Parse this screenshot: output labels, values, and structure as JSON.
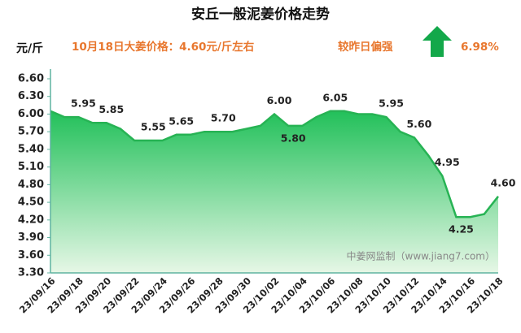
{
  "chart_data": {
    "type": "area",
    "title": "安丘一般泥姜价格走势",
    "y_unit": "元/斤",
    "subtitle": "10月18日大姜价格：4.60元/斤左右",
    "change_text": "较昨日偏强",
    "change": "6.98%",
    "watermark": "中姜网监制（www.jiang7.com）",
    "color": "#27b354",
    "categories": [
      "23/09/16",
      null,
      "23/09/18",
      null,
      "23/09/20",
      null,
      "23/09/22",
      null,
      "23/09/24",
      null,
      "23/09/26",
      null,
      "23/09/28",
      null,
      "23/09/30",
      null,
      "23/10/02",
      null,
      "23/10/04",
      null,
      "23/10/06",
      null,
      "23/10/08",
      null,
      "23/10/10",
      null,
      "23/10/12",
      null,
      "23/10/14",
      null,
      "23/10/16",
      null,
      "23/10/18"
    ],
    "values": [
      6.05,
      5.95,
      5.95,
      5.85,
      5.85,
      5.75,
      5.55,
      5.55,
      5.55,
      5.65,
      5.65,
      5.7,
      5.7,
      5.7,
      5.75,
      5.8,
      6.0,
      5.8,
      5.8,
      5.95,
      6.05,
      6.05,
      6.0,
      6.0,
      5.95,
      5.7,
      5.6,
      5.3,
      4.95,
      4.25,
      4.25,
      4.3,
      4.6
    ],
    "value_labels": [
      null,
      null,
      "5.95",
      null,
      "5.85",
      null,
      null,
      "5.55",
      null,
      "5.65",
      null,
      null,
      "5.70",
      null,
      null,
      null,
      "6.00",
      "5.80",
      null,
      null,
      "6.05",
      null,
      null,
      null,
      "5.95",
      null,
      "5.60",
      null,
      "4.95",
      "4.25",
      null,
      null,
      "4.60"
    ],
    "ylim": [
      3.3,
      6.6
    ],
    "yticks": [
      {
        "value": 3.3,
        "label": "3.30"
      },
      {
        "value": 3.6,
        "label": "3.60"
      },
      {
        "value": 3.9,
        "label": "3.90"
      },
      {
        "value": 4.2,
        "label": "4.20"
      },
      {
        "value": 4.5,
        "label": "4.50"
      },
      {
        "value": 4.8,
        "label": "4.80"
      },
      {
        "value": 5.1,
        "label": "5.10"
      },
      {
        "value": 5.4,
        "label": "5.40"
      },
      {
        "value": 5.7,
        "label": "5.70"
      },
      {
        "value": 6.0,
        "label": "6.00"
      },
      {
        "value": 6.3,
        "label": "6.30"
      },
      {
        "value": 6.6,
        "label": "6.60"
      }
    ],
    "grid": false
  }
}
